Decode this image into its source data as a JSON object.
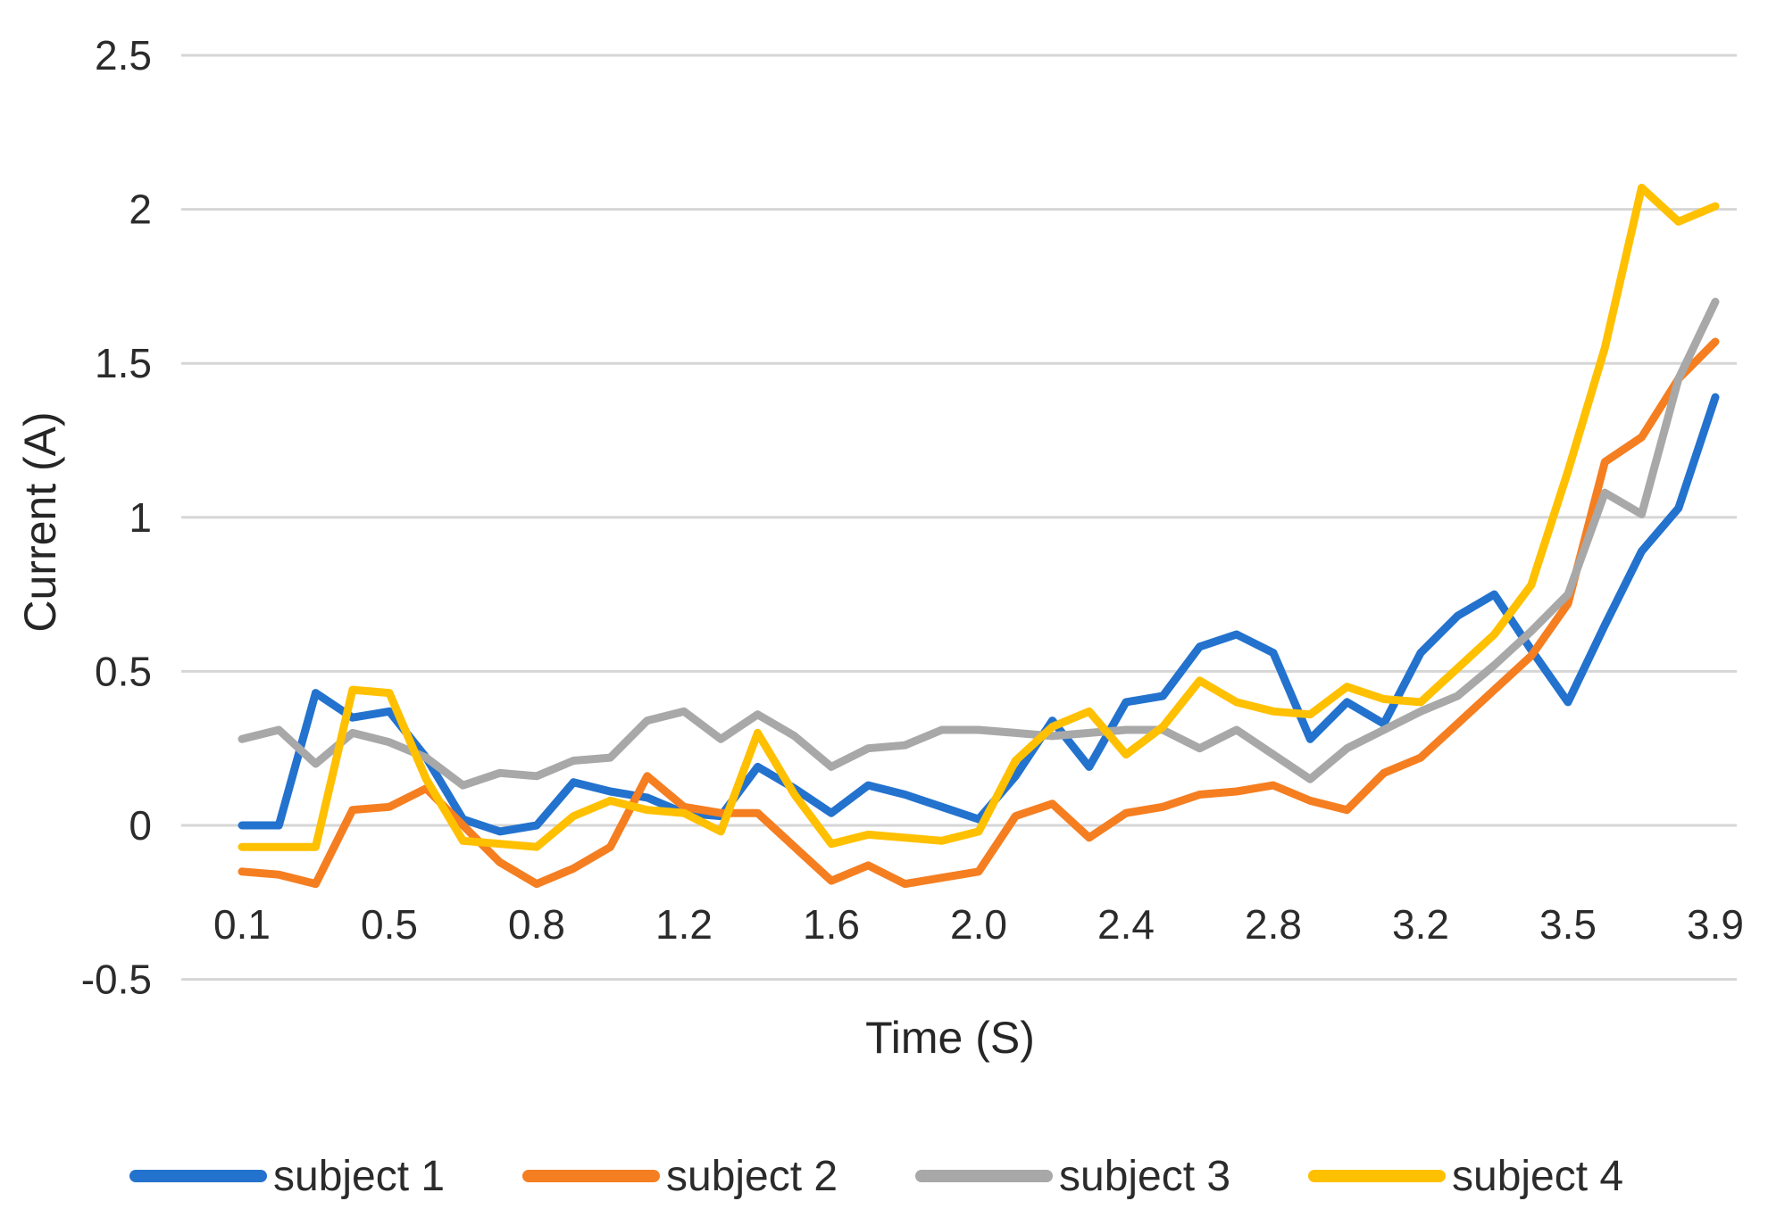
{
  "chart_data": {
    "type": "line",
    "title": "",
    "xlabel": "Time (S)",
    "ylabel": "Current (A)",
    "ylim": [
      -0.5,
      2.5
    ],
    "grid": true,
    "legend_position": "bottom",
    "y_tick_labels": [
      "2.5",
      "2",
      "1.5",
      "1",
      "0.5",
      "0",
      "-0.5"
    ],
    "y_tick_values": [
      2.5,
      2.0,
      1.5,
      1.0,
      0.5,
      0.0,
      -0.5
    ],
    "n_points": 41,
    "x_tick_labels": [
      "0.1",
      "0.5",
      "0.8",
      "1.2",
      "1.6",
      "2.0",
      "2.4",
      "2.8",
      "3.2",
      "3.5",
      "3.9"
    ],
    "x_tick_indices": [
      0,
      4,
      8,
      12,
      16,
      20,
      24,
      28,
      32,
      36,
      40
    ],
    "series": [
      {
        "name": "subject 1",
        "color": "#2372CE",
        "values": [
          0.0,
          0.0,
          0.43,
          0.35,
          0.37,
          0.22,
          0.02,
          -0.02,
          0.0,
          0.14,
          0.11,
          0.09,
          0.04,
          0.03,
          0.19,
          0.12,
          0.04,
          0.13,
          0.1,
          0.06,
          0.02,
          0.16,
          0.34,
          0.19,
          0.4,
          0.42,
          0.58,
          0.62,
          0.56,
          0.28,
          0.4,
          0.33,
          0.56,
          0.68,
          0.75,
          0.57,
          0.4,
          0.65,
          0.89,
          1.03,
          1.39
        ]
      },
      {
        "name": "subject 2",
        "color": "#F57E20",
        "values": [
          -0.15,
          -0.16,
          -0.19,
          0.05,
          0.06,
          0.12,
          0.0,
          -0.12,
          -0.19,
          -0.14,
          -0.07,
          0.16,
          0.06,
          0.04,
          0.04,
          -0.07,
          -0.18,
          -0.13,
          -0.19,
          -0.17,
          -0.15,
          0.03,
          0.07,
          -0.04,
          0.04,
          0.06,
          0.1,
          0.11,
          0.13,
          0.08,
          0.05,
          0.17,
          0.22,
          0.33,
          0.44,
          0.55,
          0.72,
          1.18,
          1.26,
          1.45,
          1.57
        ]
      },
      {
        "name": "subject 3",
        "color": "#A8A8A8",
        "values": [
          0.28,
          0.31,
          0.2,
          0.3,
          0.27,
          0.22,
          0.13,
          0.17,
          0.16,
          0.21,
          0.22,
          0.34,
          0.37,
          0.28,
          0.36,
          0.29,
          0.19,
          0.25,
          0.26,
          0.31,
          0.31,
          0.3,
          0.29,
          0.3,
          0.31,
          0.31,
          0.25,
          0.31,
          0.23,
          0.15,
          0.25,
          0.31,
          0.37,
          0.42,
          0.52,
          0.63,
          0.75,
          1.08,
          1.01,
          1.45,
          1.7
        ]
      },
      {
        "name": "subject 4",
        "color": "#FFC000",
        "values": [
          -0.07,
          -0.07,
          -0.07,
          0.44,
          0.43,
          0.15,
          -0.05,
          -0.06,
          -0.07,
          0.03,
          0.08,
          0.05,
          0.04,
          -0.02,
          0.3,
          0.1,
          -0.06,
          -0.03,
          -0.04,
          -0.05,
          -0.02,
          0.21,
          0.32,
          0.37,
          0.23,
          0.32,
          0.47,
          0.4,
          0.37,
          0.36,
          0.45,
          0.41,
          0.4,
          0.51,
          0.62,
          0.78,
          1.15,
          1.55,
          2.07,
          1.96,
          2.01
        ]
      }
    ]
  },
  "colors": {
    "background": "#ffffff",
    "gridline": "#D6D6D6",
    "tick_text": "#2b2b2b",
    "axis_title_text": "#262626"
  },
  "layout_text": {
    "note": "all visible text lives in chart_data: y tick labels, x tick labels, axis titles, legend entries"
  }
}
